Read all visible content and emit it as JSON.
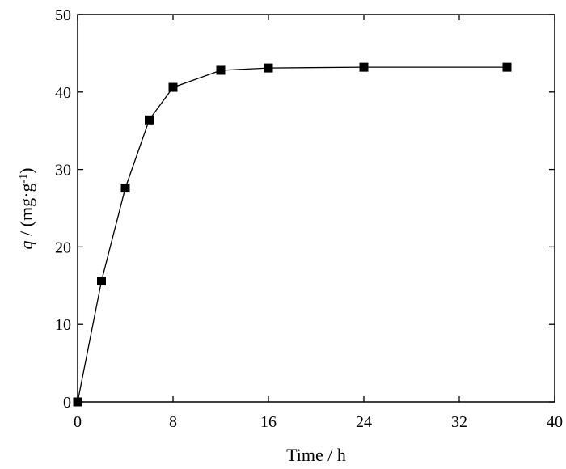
{
  "chart_data": {
    "type": "line",
    "title": "",
    "xlabel": "Time / h",
    "ylabel": {
      "symbol": "q",
      "sep": " / (mg·g",
      "sup": "-1",
      "close": ")"
    },
    "xlim": [
      0,
      40
    ],
    "ylim": [
      0,
      50
    ],
    "xticks": [
      0,
      8,
      16,
      24,
      32,
      40
    ],
    "yticks": [
      0,
      10,
      20,
      30,
      40,
      50
    ],
    "grid": false,
    "marker": "square",
    "colors": {
      "line": "#000000",
      "marker": "#000000"
    },
    "series": [
      {
        "x": [
          0,
          2,
          4,
          6,
          8,
          12,
          16,
          24,
          36
        ],
        "y": [
          0,
          15.6,
          27.6,
          36.4,
          40.6,
          42.8,
          43.1,
          43.2,
          43.2
        ]
      }
    ]
  }
}
